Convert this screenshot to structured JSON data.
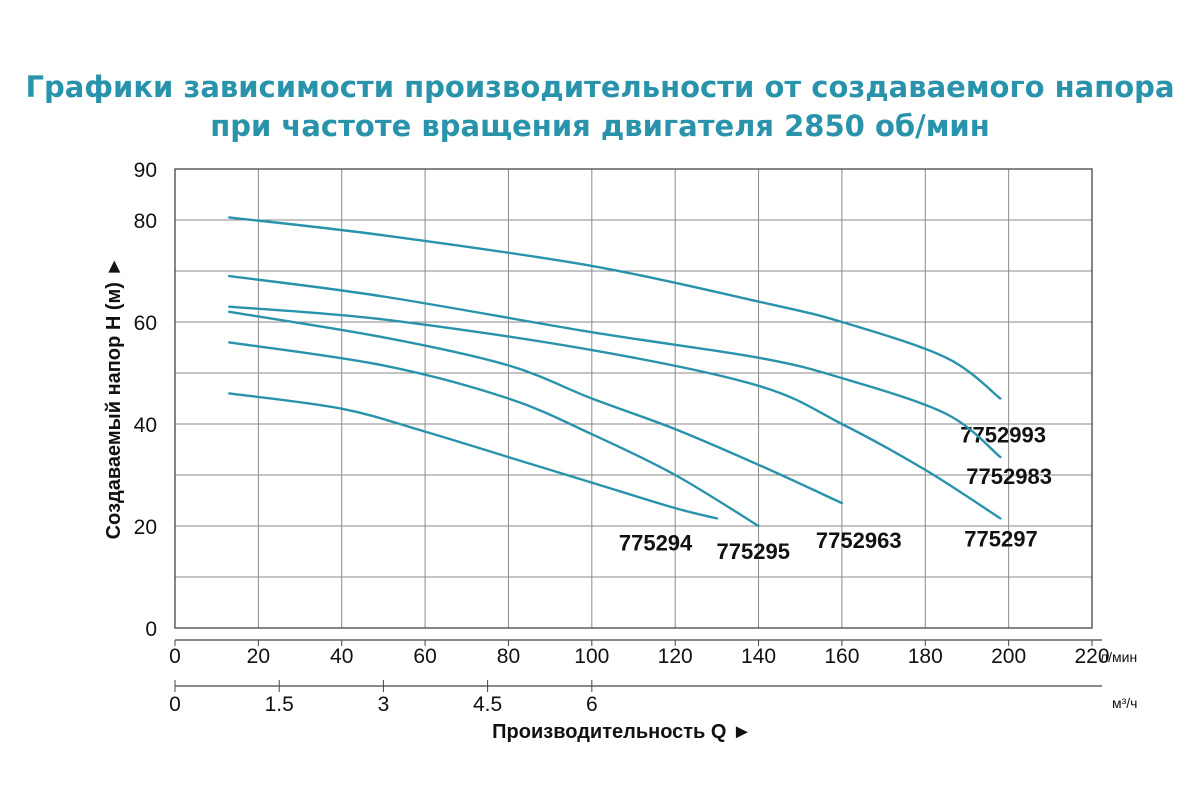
{
  "title_line1": "Графики зависимости производительности от создаваемого напора",
  "title_line2": "при частоте вращения двигателя 2850 об/мин",
  "chart_data": {
    "type": "line",
    "title": "Графики зависимости производительности от создаваемого напора при частоте вращения двигателя 2850 об/мин",
    "ylabel": "Создаваемый напор H (м) ►",
    "xlabel": "Производительность Q ►",
    "x_unit": "л/мин",
    "x2_unit": "м³/ч",
    "xlim": [
      0,
      220
    ],
    "ylim": [
      0,
      90
    ],
    "x_ticks": [
      "0",
      "20",
      "40",
      "60",
      "80",
      "100",
      "120",
      "140",
      "160",
      "180",
      "200",
      "220"
    ],
    "x2_ticks": [
      "0",
      "1.5",
      "3",
      "4.5",
      "6"
    ],
    "y_ticks": [
      "0",
      "20",
      "40",
      "60",
      "80",
      "90"
    ],
    "grid": true,
    "line_color": "#2a93ac",
    "series": [
      {
        "name": "7752993",
        "x": [
          13,
          50,
          100,
          140,
          160,
          185,
          198
        ],
        "y": [
          80.5,
          77,
          71,
          64,
          60,
          53,
          45
        ]
      },
      {
        "name": "7752983",
        "x": [
          13,
          50,
          100,
          140,
          160,
          185,
          198
        ],
        "y": [
          69,
          65,
          58,
          53,
          49,
          42,
          33.5
        ]
      },
      {
        "name": "775297",
        "x": [
          13,
          50,
          100,
          140,
          160,
          180,
          198
        ],
        "y": [
          63,
          60.5,
          54.5,
          47.5,
          40,
          31,
          21.5
        ]
      },
      {
        "name": "7752963",
        "x": [
          13,
          50,
          80,
          100,
          120,
          140,
          160
        ],
        "y": [
          62,
          57,
          51.5,
          45,
          39,
          32,
          24.5
        ]
      },
      {
        "name": "775295",
        "x": [
          13,
          50,
          80,
          100,
          120,
          140
        ],
        "y": [
          56,
          51.5,
          45,
          38,
          30,
          20
        ]
      },
      {
        "name": "775294",
        "x": [
          13,
          40,
          60,
          80,
          100,
          120,
          130
        ],
        "y": [
          46,
          43,
          38.5,
          33.5,
          28.5,
          23.5,
          21.5
        ]
      }
    ]
  }
}
